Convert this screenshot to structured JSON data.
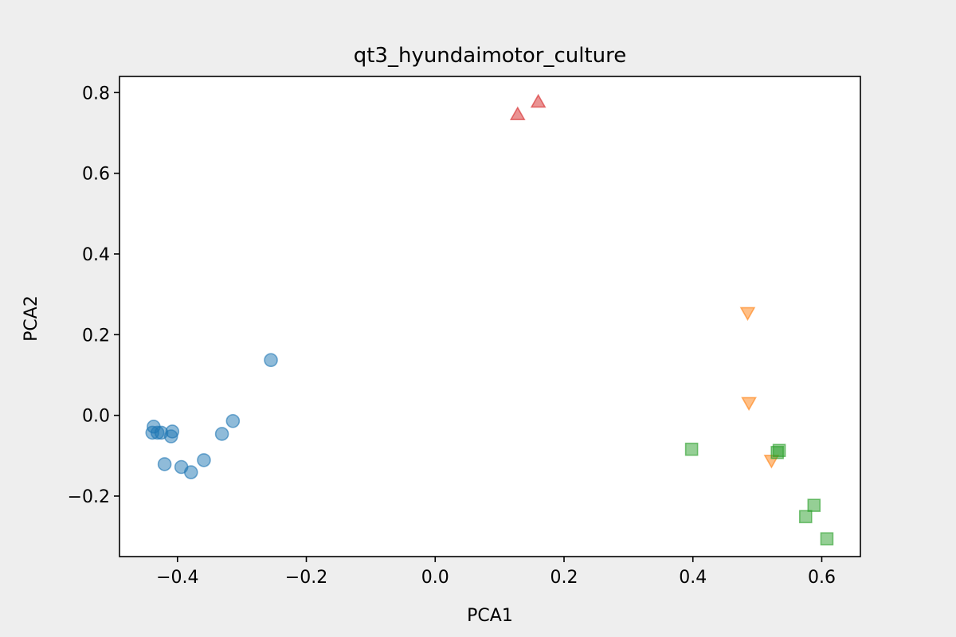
{
  "chart_data": {
    "type": "scatter",
    "title": "qt3_hyundaimotor_culture",
    "xlabel": "PCA1",
    "ylabel": "PCA2",
    "xlim": [
      -0.49,
      0.66
    ],
    "ylim": [
      -0.35,
      0.84
    ],
    "grid": false,
    "xticks": [
      -0.4,
      -0.2,
      0.0,
      0.2,
      0.4,
      0.6
    ],
    "xtick_labels": [
      "−0.4",
      "−0.2",
      "0.0",
      "0.2",
      "0.4",
      "0.6"
    ],
    "yticks": [
      -0.2,
      0.0,
      0.2,
      0.4,
      0.6,
      0.8
    ],
    "ytick_labels": [
      "−0.2",
      "0.0",
      "0.2",
      "0.4",
      "0.6",
      "0.8"
    ],
    "series": [
      {
        "marker": "circle",
        "color": "#1f77b4",
        "points": [
          [
            -0.439,
            -0.043
          ],
          [
            -0.437,
            -0.028
          ],
          [
            -0.431,
            -0.043
          ],
          [
            -0.425,
            -0.043
          ],
          [
            -0.41,
            -0.052
          ],
          [
            -0.408,
            -0.04
          ],
          [
            -0.42,
            -0.121
          ],
          [
            -0.394,
            -0.128
          ],
          [
            -0.379,
            -0.141
          ],
          [
            -0.359,
            -0.111
          ],
          [
            -0.331,
            -0.046
          ],
          [
            -0.314,
            -0.014
          ],
          [
            -0.255,
            0.137
          ]
        ]
      },
      {
        "marker": "triangle-up",
        "color": "#d62728",
        "points": [
          [
            0.128,
            0.745
          ],
          [
            0.16,
            0.776
          ]
        ]
      },
      {
        "marker": "triangle-down",
        "color": "#ff7f0e",
        "points": [
          [
            0.485,
            0.255
          ],
          [
            0.487,
            0.032
          ],
          [
            0.522,
            -0.111
          ]
        ]
      },
      {
        "marker": "square",
        "color": "#2ca02c",
        "points": [
          [
            0.398,
            -0.084
          ],
          [
            0.531,
            -0.092
          ],
          [
            0.534,
            -0.087
          ],
          [
            0.575,
            -0.251
          ],
          [
            0.588,
            -0.223
          ],
          [
            0.608,
            -0.306
          ]
        ]
      }
    ]
  }
}
